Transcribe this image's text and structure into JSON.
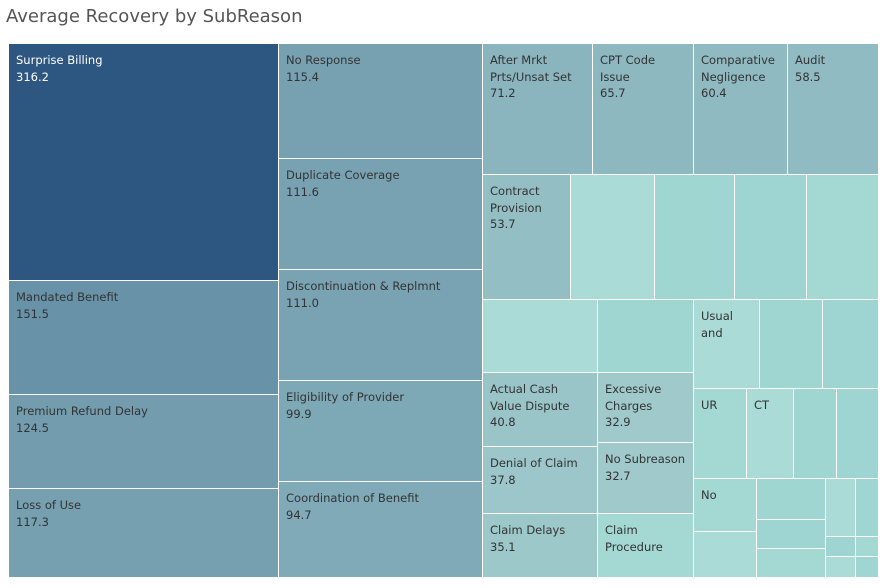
{
  "chart_data": {
    "type": "treemap",
    "title": "Average Recovery by SubReason",
    "value_scale": {
      "min": 0,
      "max": 316.2,
      "color_low": "#b8e3dc",
      "color_high": "#2d5680"
    },
    "items": [
      {
        "label": "Surprise Billing",
        "value": 316.2
      },
      {
        "label": "Mandated Benefit",
        "value": 151.5
      },
      {
        "label": "Premium Refund Delay",
        "value": 124.5
      },
      {
        "label": "Loss of Use",
        "value": 117.3
      },
      {
        "label": "No Response",
        "value": 115.4
      },
      {
        "label": "Duplicate Coverage",
        "value": 111.6
      },
      {
        "label": "Discontinuation & Replmnt",
        "value": 111.0
      },
      {
        "label": "Eligibility of Provider",
        "value": 99.9
      },
      {
        "label": "Coordination of Benefit",
        "value": 94.7
      },
      {
        "label": "After Mrkt Prts/Unsat Set",
        "value": 71.2
      },
      {
        "label": "CPT Code Issue",
        "value": 65.7
      },
      {
        "label": "Comparative Negligence",
        "value": 60.4
      },
      {
        "label": "Audit",
        "value": 58.5
      },
      {
        "label": "Contract Provision",
        "value": 53.7
      },
      {
        "label": "",
        "value": null
      },
      {
        "label": "",
        "value": null
      },
      {
        "label": "",
        "value": null
      },
      {
        "label": "",
        "value": null
      },
      {
        "label": "",
        "value": null
      },
      {
        "label": "",
        "value": null
      },
      {
        "label": "Actual Cash Value Dispute",
        "value": 40.8
      },
      {
        "label": "Excessive Charges",
        "value": 32.9
      },
      {
        "label": "Denial of Claim",
        "value": 37.8
      },
      {
        "label": "No Subreason",
        "value": 32.7
      },
      {
        "label": "Claim Delays",
        "value": 35.1
      },
      {
        "label": "Claim Procedure",
        "value": null
      },
      {
        "label": "Usual and",
        "value": null
      },
      {
        "label": "",
        "value": null
      },
      {
        "label": "",
        "value": null
      },
      {
        "label": "UR",
        "value": null
      },
      {
        "label": "CT",
        "value": null
      },
      {
        "label": "",
        "value": null
      },
      {
        "label": "",
        "value": null
      },
      {
        "label": "No",
        "value": null
      },
      {
        "label": "",
        "value": null
      },
      {
        "label": "",
        "value": null
      },
      {
        "label": "",
        "value": null
      },
      {
        "label": "",
        "value": null
      },
      {
        "label": "",
        "value": null
      },
      {
        "label": "",
        "value": null
      },
      {
        "label": "",
        "value": null
      },
      {
        "label": "",
        "value": null
      },
      {
        "label": "",
        "value": null
      },
      {
        "label": "",
        "value": null
      }
    ]
  }
}
